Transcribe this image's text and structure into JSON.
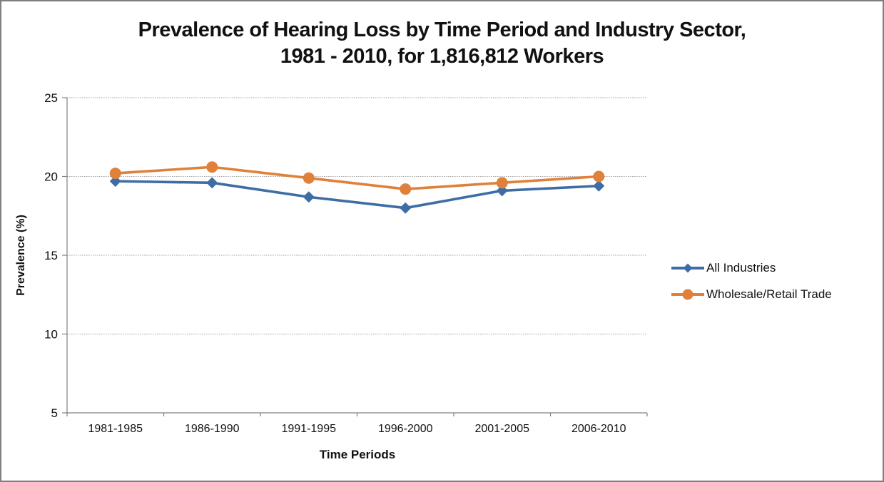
{
  "window": {
    "background": "#ffffff",
    "border_color": "#7f7f7f"
  },
  "chart_data": {
    "type": "line",
    "title_line1": "Prevalence of Hearing Loss by Time Period and Industry Sector,",
    "title_line2": "1981 - 2010, for 1,816,812 Workers",
    "xlabel": "Time Periods",
    "ylabel": "Prevalence (%)",
    "ylim": [
      5,
      25
    ],
    "yticks": [
      25,
      20,
      15,
      10,
      5
    ],
    "categories": [
      "1981-1985",
      "1986-1990",
      "1991-1995",
      "1996-2000",
      "2001-2005",
      "2006-2010"
    ],
    "series": [
      {
        "name": "All Industries",
        "color": "#3e6da5",
        "marker": "diamond",
        "values": [
          19.7,
          19.6,
          18.7,
          18.0,
          19.1,
          19.4
        ]
      },
      {
        "name": "Wholesale/Retail Trade",
        "color": "#df813a",
        "marker": "circle",
        "values": [
          20.2,
          20.6,
          19.9,
          19.2,
          19.6,
          20.0
        ]
      }
    ],
    "grid": "horizontal-dotted",
    "legend_position": "right",
    "axis_color": "#808080",
    "gridline_color": "#a0a0a0",
    "tick_label_color": "#111111"
  }
}
